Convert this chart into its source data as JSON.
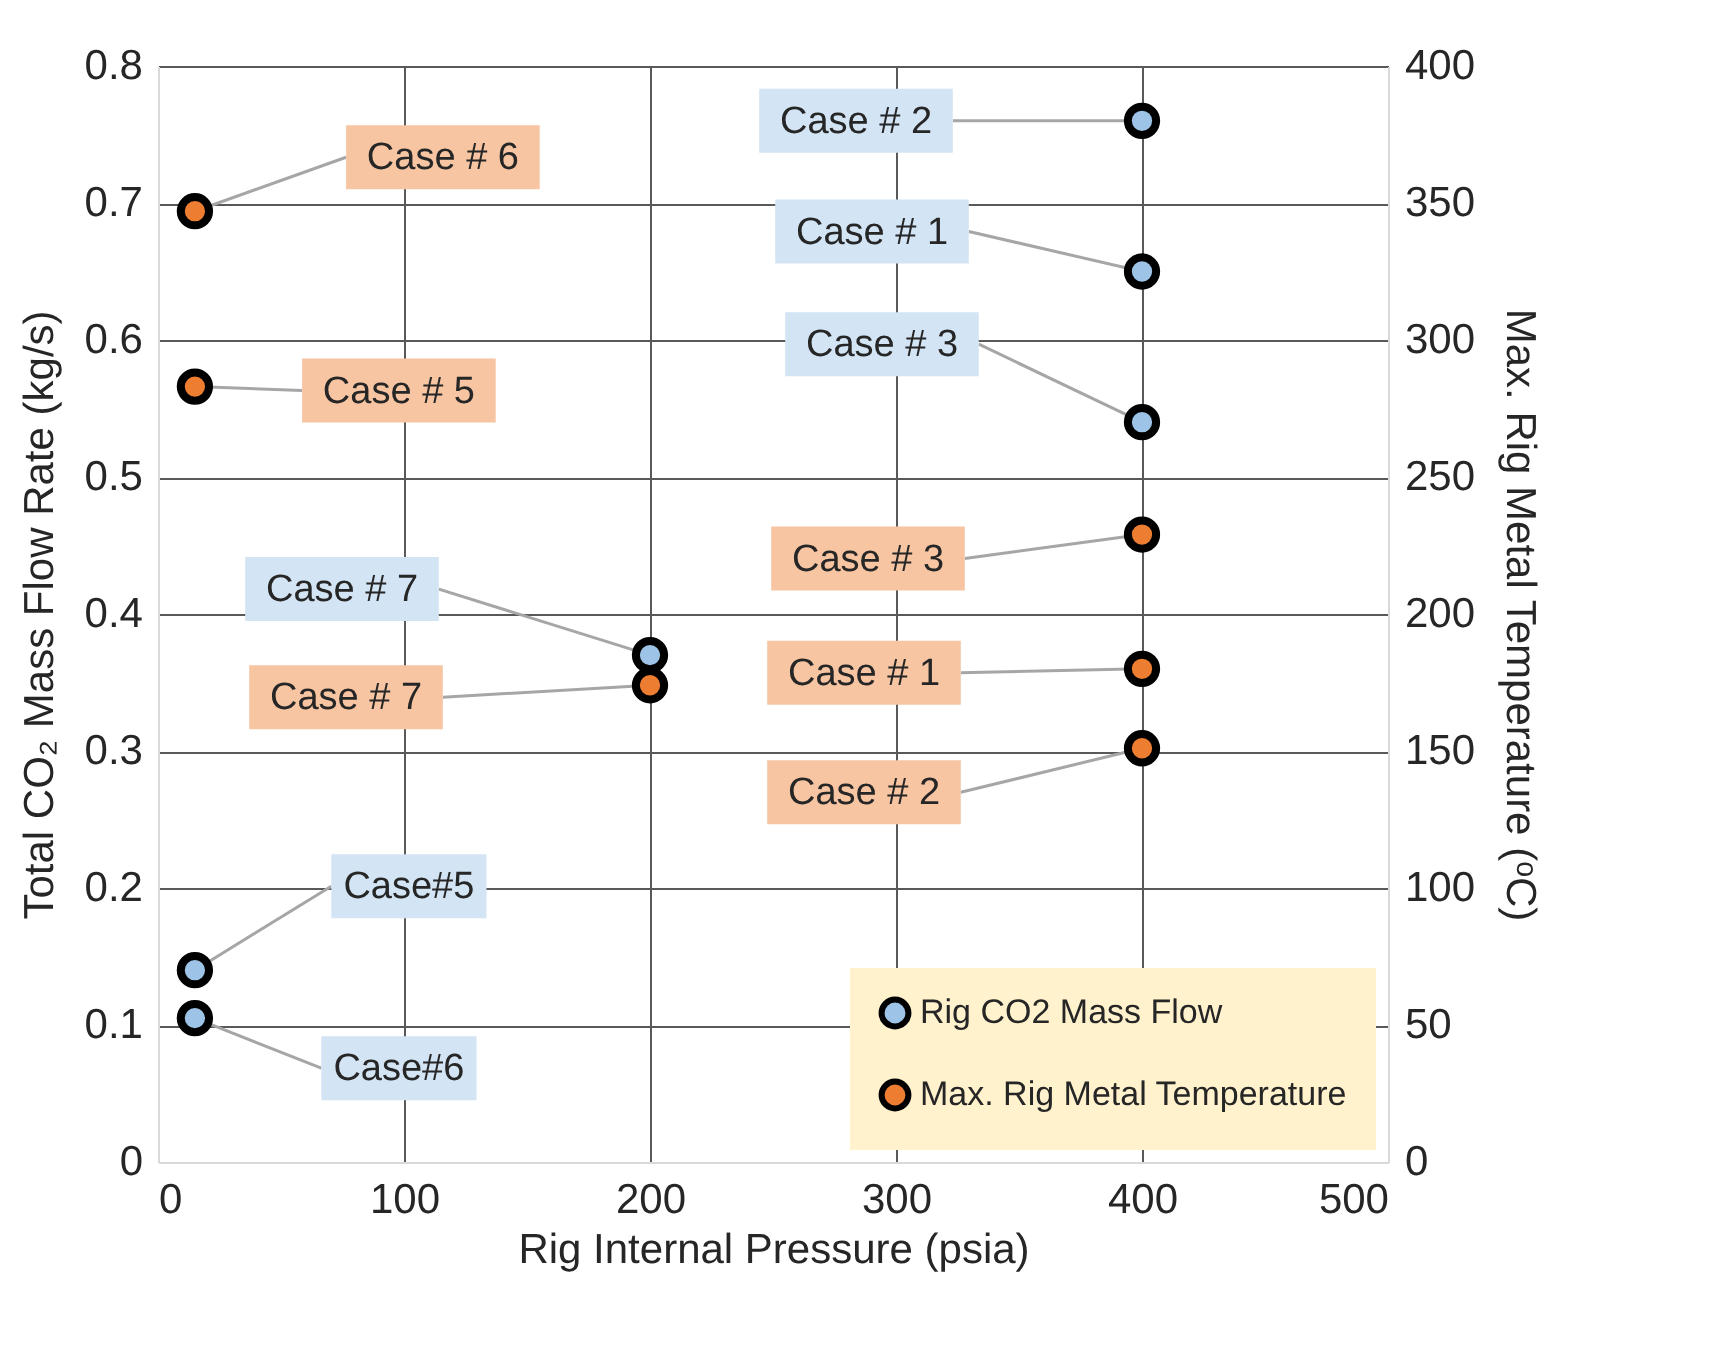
{
  "chart_data": {
    "type": "scatter",
    "xlabel": "Rig Internal Pressure (psia)",
    "ylabel": "Total CO₂ Mass Flow Rate (kg/s)",
    "y2label": "Max. Rig Metal Temperature (ᵒC)",
    "xlim": [
      0,
      500
    ],
    "xticks": [
      0,
      100,
      200,
      300,
      400,
      500
    ],
    "ylim": [
      0,
      0.8
    ],
    "yticks": [
      0,
      0.1,
      0.2,
      0.3,
      0.4,
      0.5,
      0.6,
      0.7,
      0.8
    ],
    "y2lim": [
      0,
      400
    ],
    "y2ticks": [
      0,
      50,
      100,
      150,
      200,
      250,
      300,
      350,
      400
    ],
    "grid": true,
    "legend": "bottom right",
    "marker": "circle",
    "series": [
      {
        "name": "Rig CO2 Mass Flow",
        "color": "#9dc3e6",
        "x": [
          400,
          400,
          400,
          200,
          15,
          15
        ],
        "values": [
          0.76,
          0.65,
          0.54,
          0.37,
          0.14,
          0.105
        ]
      },
      {
        "name": "Max. Rig Metal Temperature",
        "color": "#ed7d31",
        "axis": "y2",
        "x": [
          15,
          15,
          200,
          400,
          400,
          400
        ],
        "values": [
          347,
          283,
          174,
          229,
          180,
          151
        ]
      }
    ],
    "annotations": [
      {
        "text": "Case # 2",
        "x": 400,
        "y": 0.76
      },
      {
        "text": "Case # 1",
        "x": 400,
        "y": 0.65
      },
      {
        "text": "Case # 3",
        "x": 400,
        "y": 0.54
      },
      {
        "text": "Case # 7",
        "x": 200,
        "y": 0.37
      },
      {
        "text": "Case#5",
        "x": 15,
        "y": 0.14
      },
      {
        "text": "Case#6",
        "x": 15,
        "y": 0.105
      },
      {
        "text": "Case # 6",
        "x": 15,
        "y": 0.694
      },
      {
        "text": "Case # 5",
        "x": 15,
        "y": 0.566
      },
      {
        "text": "Case # 7",
        "x": 200,
        "y": 0.348
      },
      {
        "text": "Case # 3",
        "x": 400,
        "y": 0.458
      },
      {
        "text": "Case # 1",
        "x": 400,
        "y": 0.36
      },
      {
        "text": "Case # 2",
        "x": 400,
        "y": 0.302
      }
    ]
  }
}
